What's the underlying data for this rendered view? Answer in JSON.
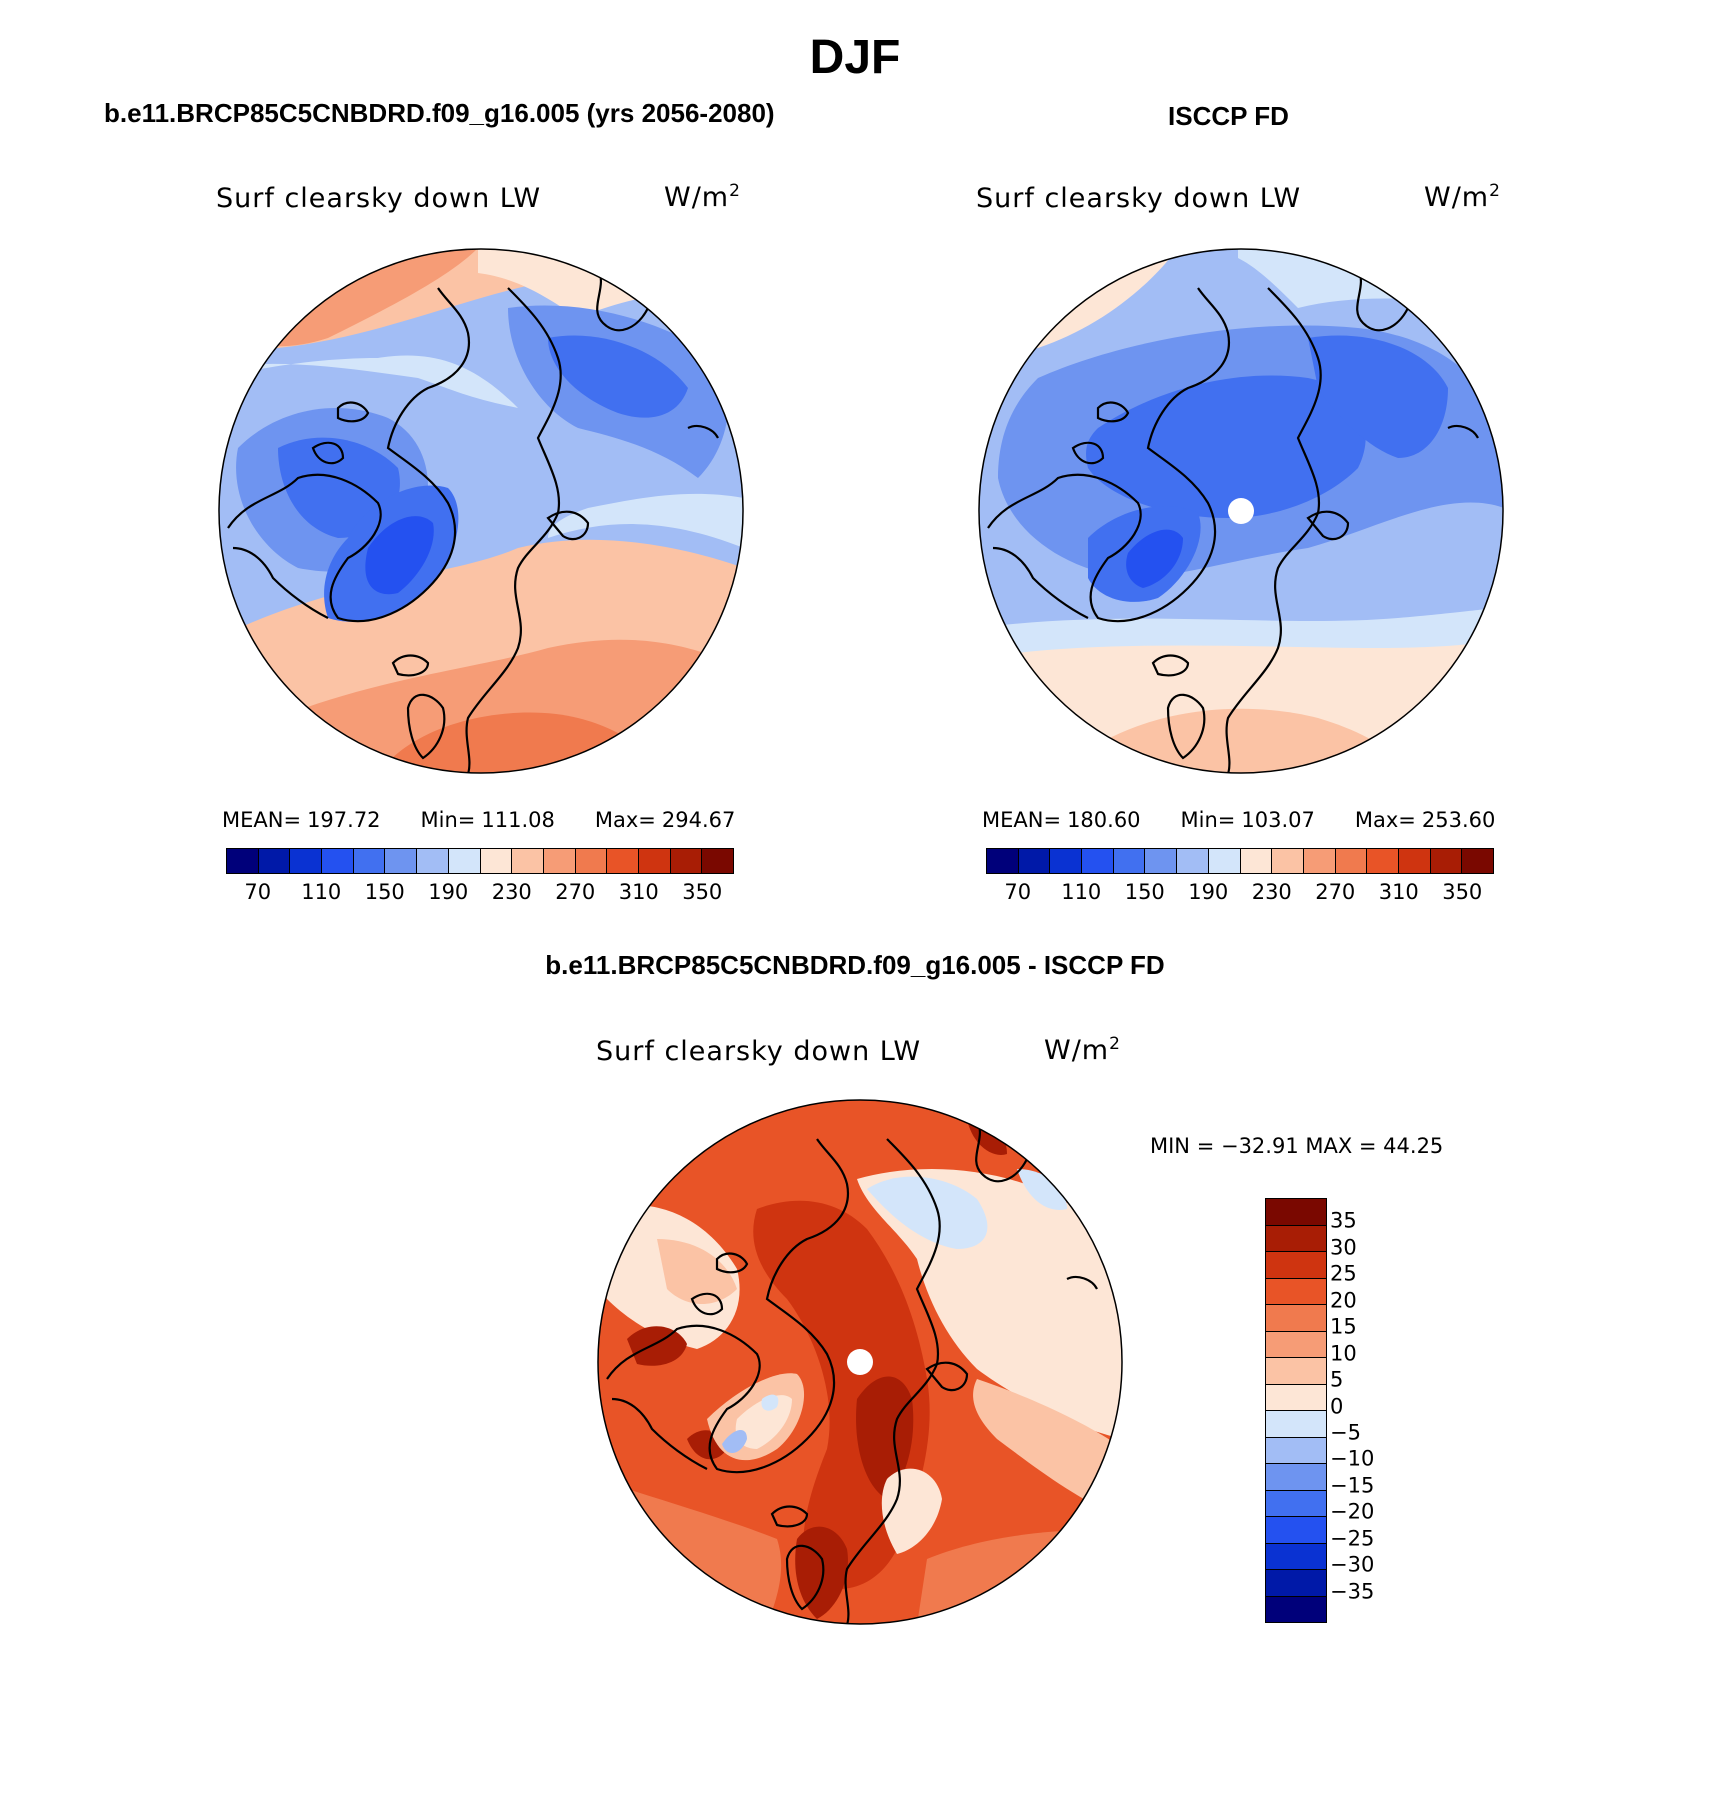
{
  "figure": {
    "title": "DJF",
    "left_title": "b.e11.BRCP85C5CNBDRD.f09_g16.005 (yrs 2056-2080)",
    "right_title": "ISCCP FD",
    "diff_title": "b.e11.BRCP85C5CNBDRD.f09_g16.005 - ISCCP FD"
  },
  "panels": {
    "model": {
      "variable": "Surf clearsky down LW",
      "unit_base": "W/m",
      "unit_exp": "2",
      "mean_label": "MEAN=",
      "mean_value": "197.72",
      "min_label": "Min=",
      "min_value": "111.08",
      "max_label": "Max=",
      "max_value": "294.67"
    },
    "obs": {
      "variable": "Surf clearsky down LW",
      "unit_base": "W/m",
      "unit_exp": "2",
      "mean_label": "MEAN=",
      "mean_value": "180.60",
      "min_label": "Min=",
      "min_value": "103.07",
      "max_label": "Max=",
      "max_value": "253.60"
    },
    "diff": {
      "variable": "Surf clearsky down LW",
      "unit_base": "W/m",
      "unit_exp": "2",
      "minmax_text": "MIN = −32.91 MAX =  44.25"
    }
  },
  "colorbars": {
    "absolute": {
      "colors": [
        "#00007a",
        "#0019a8",
        "#0a32d2",
        "#2451f0",
        "#4170f0",
        "#6e94f0",
        "#a2bdf5",
        "#d3e5fa",
        "#fde6d6",
        "#fbc3a5",
        "#f69c76",
        "#f07a4e",
        "#e85427",
        "#cf3410",
        "#a81d05",
        "#7a0800"
      ],
      "labels": [
        "70",
        "110",
        "150",
        "190",
        "230",
        "270",
        "310",
        "350"
      ]
    },
    "difference": {
      "colors": [
        "#7a0800",
        "#a81d05",
        "#cf3410",
        "#e85427",
        "#f07a4e",
        "#f69c76",
        "#fbc3a5",
        "#fde6d6",
        "#d3e5fa",
        "#a2bdf5",
        "#6e94f0",
        "#4170f0",
        "#2451f0",
        "#0a32d2",
        "#0019a8",
        "#00007a"
      ],
      "labels": [
        "35",
        "30",
        "25",
        "20",
        "15",
        "10",
        "5",
        "0",
        "−5",
        "−10",
        "−15",
        "−20",
        "−25",
        "−30",
        "−35"
      ]
    }
  },
  "map_colors": {
    "model": {
      "base": "#a2bdf5",
      "bands": [
        "#fbc3a5",
        "#fde6d6",
        "#d3e5fa",
        "#a2bdf5",
        "#6e94f0",
        "#4170f0",
        "#2451f0",
        "#f69c76",
        "#f07a4e"
      ]
    },
    "obs": {
      "base": "#a2bdf5",
      "bands": [
        "#fbc3a5",
        "#fde6d6",
        "#d3e5fa",
        "#a2bdf5",
        "#6e94f0",
        "#4170f0",
        "#2451f0"
      ]
    },
    "diff": {
      "base": "#e85427",
      "bands": [
        "#fde6d6",
        "#fbc3a5",
        "#f69c76",
        "#f07a4e",
        "#cf3410",
        "#a81d05",
        "#d3e5fa",
        "#a2bdf5"
      ]
    }
  }
}
